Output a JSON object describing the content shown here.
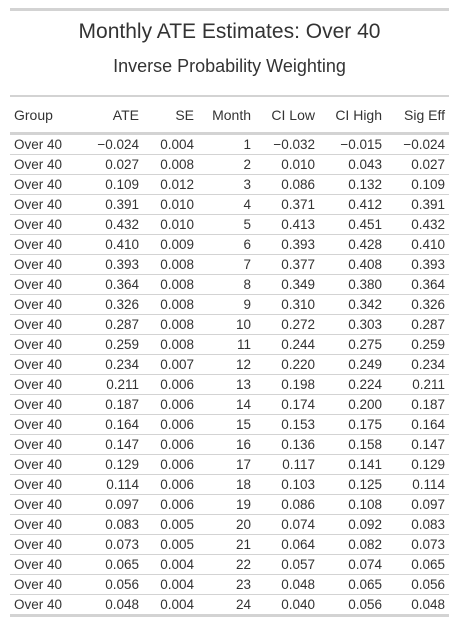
{
  "title": "Monthly ATE Estimates: Over 40",
  "subtitle": "Inverse Probability Weighting",
  "columns": [
    "Group",
    "ATE",
    "SE",
    "Month",
    "CI Low",
    "CI High",
    "Sig Eff"
  ],
  "rows": [
    [
      "Over 40",
      "−0.024",
      "0.004",
      "1",
      "−0.032",
      "−0.015",
      "−0.024"
    ],
    [
      "Over 40",
      "0.027",
      "0.008",
      "2",
      "0.010",
      "0.043",
      "0.027"
    ],
    [
      "Over 40",
      "0.109",
      "0.012",
      "3",
      "0.086",
      "0.132",
      "0.109"
    ],
    [
      "Over 40",
      "0.391",
      "0.010",
      "4",
      "0.371",
      "0.412",
      "0.391"
    ],
    [
      "Over 40",
      "0.432",
      "0.010",
      "5",
      "0.413",
      "0.451",
      "0.432"
    ],
    [
      "Over 40",
      "0.410",
      "0.009",
      "6",
      "0.393",
      "0.428",
      "0.410"
    ],
    [
      "Over 40",
      "0.393",
      "0.008",
      "7",
      "0.377",
      "0.408",
      "0.393"
    ],
    [
      "Over 40",
      "0.364",
      "0.008",
      "8",
      "0.349",
      "0.380",
      "0.364"
    ],
    [
      "Over 40",
      "0.326",
      "0.008",
      "9",
      "0.310",
      "0.342",
      "0.326"
    ],
    [
      "Over 40",
      "0.287",
      "0.008",
      "10",
      "0.272",
      "0.303",
      "0.287"
    ],
    [
      "Over 40",
      "0.259",
      "0.008",
      "11",
      "0.244",
      "0.275",
      "0.259"
    ],
    [
      "Over 40",
      "0.234",
      "0.007",
      "12",
      "0.220",
      "0.249",
      "0.234"
    ],
    [
      "Over 40",
      "0.211",
      "0.006",
      "13",
      "0.198",
      "0.224",
      "0.211"
    ],
    [
      "Over 40",
      "0.187",
      "0.006",
      "14",
      "0.174",
      "0.200",
      "0.187"
    ],
    [
      "Over 40",
      "0.164",
      "0.006",
      "15",
      "0.153",
      "0.175",
      "0.164"
    ],
    [
      "Over 40",
      "0.147",
      "0.006",
      "16",
      "0.136",
      "0.158",
      "0.147"
    ],
    [
      "Over 40",
      "0.129",
      "0.006",
      "17",
      "0.117",
      "0.141",
      "0.129"
    ],
    [
      "Over 40",
      "0.114",
      "0.006",
      "18",
      "0.103",
      "0.125",
      "0.114"
    ],
    [
      "Over 40",
      "0.097",
      "0.006",
      "19",
      "0.086",
      "0.108",
      "0.097"
    ],
    [
      "Over 40",
      "0.083",
      "0.005",
      "20",
      "0.074",
      "0.092",
      "0.083"
    ],
    [
      "Over 40",
      "0.073",
      "0.005",
      "21",
      "0.064",
      "0.082",
      "0.073"
    ],
    [
      "Over 40",
      "0.065",
      "0.004",
      "22",
      "0.057",
      "0.074",
      "0.065"
    ],
    [
      "Over 40",
      "0.056",
      "0.004",
      "23",
      "0.048",
      "0.065",
      "0.056"
    ],
    [
      "Over 40",
      "0.048",
      "0.004",
      "24",
      "0.040",
      "0.056",
      "0.048"
    ]
  ],
  "colors": {
    "text": "#333333",
    "rule": "#d3d3d3",
    "background": "#ffffff"
  }
}
